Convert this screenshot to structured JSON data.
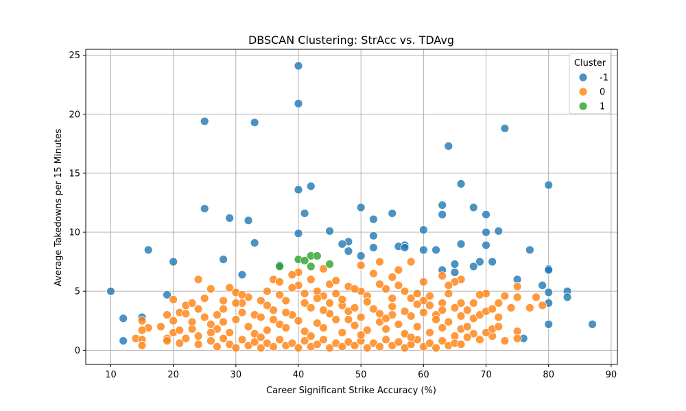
{
  "chart_data": {
    "type": "scatter",
    "title": "DBSCAN Clustering: StrAcc vs. TDAvg",
    "xlabel": "Career Significant Strike Accuracy (%)",
    "ylabel": "Average Takedowns per 15 Minutes",
    "xlim": [
      6,
      91
    ],
    "ylim": [
      -1.2,
      25.5
    ],
    "xticks": [
      10,
      20,
      30,
      40,
      50,
      60,
      70,
      80,
      90
    ],
    "yticks": [
      0,
      5,
      10,
      15,
      20,
      25
    ],
    "grid": true,
    "legend": {
      "title": "Cluster",
      "placement": "top-right"
    },
    "series": [
      {
        "name": "-1",
        "color": "#1f77b4",
        "points": [
          [
            40,
            24.1
          ],
          [
            40,
            20.9
          ],
          [
            25,
            19.4
          ],
          [
            33,
            19.3
          ],
          [
            73,
            18.8
          ],
          [
            64,
            17.3
          ],
          [
            66,
            14.1
          ],
          [
            80,
            14.0
          ],
          [
            40,
            13.6
          ],
          [
            42,
            13.9
          ],
          [
            63,
            12.3
          ],
          [
            68,
            12.1
          ],
          [
            50,
            12.1
          ],
          [
            25,
            12.0
          ],
          [
            41,
            11.6
          ],
          [
            55,
            11.6
          ],
          [
            63,
            11.5
          ],
          [
            70,
            11.5
          ],
          [
            29,
            11.2
          ],
          [
            52,
            11.1
          ],
          [
            32,
            11.0
          ],
          [
            70,
            10.0
          ],
          [
            72,
            10.1
          ],
          [
            60,
            10.2
          ],
          [
            45,
            10.1
          ],
          [
            40,
            9.9
          ],
          [
            52,
            9.7
          ],
          [
            48,
            9.2
          ],
          [
            33,
            9.1
          ],
          [
            47,
            9.0
          ],
          [
            66,
            9.0
          ],
          [
            70,
            8.9
          ],
          [
            57,
            8.9
          ],
          [
            56,
            8.8
          ],
          [
            57,
            8.7
          ],
          [
            52,
            8.7
          ],
          [
            60,
            8.5
          ],
          [
            62,
            8.5
          ],
          [
            16,
            8.5
          ],
          [
            77,
            8.5
          ],
          [
            48,
            8.4
          ],
          [
            50,
            8.0
          ],
          [
            28,
            7.7
          ],
          [
            20,
            7.5
          ],
          [
            69,
            7.5
          ],
          [
            71,
            7.5
          ],
          [
            37,
            7.2
          ],
          [
            65,
            7.3
          ],
          [
            68,
            7.1
          ],
          [
            80,
            6.9
          ],
          [
            80,
            6.8
          ],
          [
            65,
            6.6
          ],
          [
            31,
            6.4
          ],
          [
            75,
            6.0
          ],
          [
            79,
            5.5
          ],
          [
            10,
            5.0
          ],
          [
            83,
            5.0
          ],
          [
            80,
            4.9
          ],
          [
            19,
            4.7
          ],
          [
            83,
            4.5
          ],
          [
            80,
            4.0
          ],
          [
            15,
            2.8
          ],
          [
            12,
            2.7
          ],
          [
            80,
            2.2
          ],
          [
            87,
            2.2
          ],
          [
            76,
            1.0
          ],
          [
            12,
            0.8
          ],
          [
            63,
            6.8
          ]
        ]
      },
      {
        "name": "0",
        "color": "#ff7f0e",
        "points": [
          [
            24,
            6.0
          ],
          [
            40,
            6.6
          ],
          [
            39,
            6.4
          ],
          [
            36,
            6.0
          ],
          [
            42,
            6.0
          ],
          [
            53,
            7.5
          ],
          [
            58,
            7.5
          ],
          [
            50,
            7.2
          ],
          [
            56,
            6.8
          ],
          [
            63,
            6.3
          ],
          [
            66,
            6.0
          ],
          [
            60,
            5.8
          ],
          [
            65,
            5.8
          ],
          [
            70,
            4.8
          ],
          [
            72,
            4.0
          ],
          [
            75,
            5.4
          ],
          [
            75,
            4.5
          ],
          [
            73,
            4.6
          ],
          [
            78,
            4.5
          ],
          [
            79,
            3.8
          ],
          [
            77,
            3.6
          ],
          [
            74,
            3.6
          ],
          [
            72,
            2.8
          ],
          [
            75,
            1.6
          ],
          [
            75,
            1.0
          ],
          [
            73,
            0.8
          ],
          [
            71,
            1.2
          ],
          [
            70,
            1.5
          ],
          [
            20,
            4.3
          ],
          [
            22,
            3.8
          ],
          [
            23,
            4.0
          ],
          [
            19,
            3.0
          ],
          [
            21,
            3.2
          ],
          [
            22,
            3.1
          ],
          [
            20,
            2.5
          ],
          [
            18,
            2.0
          ],
          [
            16,
            1.9
          ],
          [
            15,
            2.5
          ],
          [
            15,
            1.7
          ],
          [
            14,
            1.0
          ],
          [
            15,
            0.9
          ],
          [
            15,
            0.4
          ],
          [
            19,
            1.0
          ],
          [
            19,
            0.8
          ],
          [
            20,
            1.5
          ],
          [
            21,
            1.7
          ],
          [
            21,
            0.6
          ],
          [
            22,
            1.0
          ],
          [
            23,
            1.8
          ],
          [
            24,
            1.2
          ],
          [
            26,
            5.2
          ],
          [
            25,
            4.4
          ],
          [
            27,
            3.0
          ],
          [
            28,
            3.5
          ],
          [
            26,
            2.2
          ],
          [
            29,
            5.3
          ],
          [
            30,
            4.9
          ],
          [
            31,
            4.0
          ],
          [
            33,
            3.0
          ],
          [
            34,
            4.2
          ],
          [
            35,
            5.0
          ],
          [
            37,
            4.7
          ],
          [
            38,
            4.2
          ],
          [
            40,
            5.5
          ],
          [
            41,
            4.0
          ],
          [
            43,
            5.0
          ],
          [
            44,
            4.6
          ],
          [
            45,
            5.6
          ],
          [
            46,
            4.8
          ],
          [
            47,
            3.8
          ],
          [
            48,
            5.4
          ],
          [
            50,
            5.0
          ],
          [
            51,
            4.6
          ],
          [
            52,
            6.5
          ],
          [
            54,
            5.2
          ],
          [
            55,
            4.4
          ],
          [
            56,
            5.5
          ],
          [
            57,
            5.0
          ],
          [
            58,
            4.4
          ],
          [
            59,
            4.8
          ],
          [
            60,
            4.2
          ],
          [
            61,
            3.8
          ],
          [
            62,
            3.0
          ],
          [
            63,
            4.0
          ],
          [
            64,
            4.8
          ],
          [
            65,
            3.6
          ],
          [
            66,
            2.9
          ],
          [
            67,
            3.4
          ],
          [
            68,
            2.7
          ],
          [
            69,
            3.0
          ],
          [
            70,
            3.3
          ],
          [
            71,
            1.8
          ],
          [
            72,
            2.0
          ],
          [
            25,
            2.8
          ],
          [
            27,
            1.8
          ],
          [
            28,
            2.4
          ],
          [
            29,
            1.5
          ],
          [
            30,
            2.6
          ],
          [
            31,
            3.2
          ],
          [
            32,
            2.0
          ],
          [
            33,
            1.4
          ],
          [
            34,
            2.8
          ],
          [
            35,
            1.7
          ],
          [
            36,
            3.4
          ],
          [
            37,
            2.2
          ],
          [
            38,
            1.9
          ],
          [
            39,
            3.0
          ],
          [
            40,
            2.5
          ],
          [
            41,
            1.6
          ],
          [
            42,
            3.6
          ],
          [
            43,
            2.3
          ],
          [
            44,
            1.9
          ],
          [
            45,
            3.1
          ],
          [
            46,
            2.6
          ],
          [
            47,
            1.5
          ],
          [
            48,
            3.3
          ],
          [
            49,
            2.1
          ],
          [
            50,
            2.8
          ],
          [
            51,
            1.7
          ],
          [
            52,
            3.5
          ],
          [
            53,
            2.4
          ],
          [
            54,
            1.8
          ],
          [
            55,
            3.0
          ],
          [
            56,
            2.2
          ],
          [
            57,
            1.4
          ],
          [
            58,
            2.9
          ],
          [
            59,
            2.0
          ],
          [
            60,
            3.2
          ],
          [
            61,
            1.5
          ],
          [
            62,
            2.6
          ],
          [
            63,
            1.9
          ],
          [
            64,
            2.4
          ],
          [
            65,
            1.2
          ],
          [
            66,
            1.8
          ],
          [
            67,
            2.0
          ],
          [
            68,
            1.4
          ],
          [
            69,
            0.9
          ],
          [
            24,
            0.5
          ],
          [
            26,
            0.8
          ],
          [
            27,
            0.3
          ],
          [
            28,
            1.0
          ],
          [
            29,
            0.5
          ],
          [
            30,
            0.2
          ],
          [
            31,
            0.9
          ],
          [
            32,
            0.4
          ],
          [
            33,
            0.7
          ],
          [
            34,
            0.2
          ],
          [
            35,
            0.6
          ],
          [
            36,
            0.3
          ],
          [
            37,
            0.9
          ],
          [
            38,
            0.4
          ],
          [
            39,
            0.6
          ],
          [
            40,
            0.2
          ],
          [
            41,
            0.8
          ],
          [
            42,
            0.3
          ],
          [
            43,
            0.5
          ],
          [
            44,
            0.9
          ],
          [
            45,
            0.2
          ],
          [
            46,
            0.6
          ],
          [
            47,
            0.3
          ],
          [
            48,
            0.7
          ],
          [
            49,
            0.4
          ],
          [
            50,
            0.8
          ],
          [
            51,
            0.2
          ],
          [
            52,
            0.6
          ],
          [
            53,
            0.3
          ],
          [
            54,
            0.9
          ],
          [
            55,
            0.4
          ],
          [
            56,
            0.7
          ],
          [
            57,
            0.2
          ],
          [
            58,
            0.5
          ],
          [
            59,
            0.9
          ],
          [
            60,
            0.3
          ],
          [
            61,
            0.6
          ],
          [
            62,
            0.2
          ],
          [
            63,
            0.8
          ],
          [
            64,
            0.4
          ],
          [
            65,
            0.6
          ],
          [
            66,
            0.5
          ],
          [
            30,
            4.0
          ],
          [
            32,
            4.5
          ],
          [
            35,
            3.8
          ],
          [
            38,
            3.2
          ],
          [
            41,
            4.8
          ],
          [
            44,
            3.4
          ],
          [
            47,
            4.3
          ],
          [
            49,
            3.6
          ],
          [
            51,
            4.1
          ],
          [
            53,
            3.1
          ],
          [
            55,
            3.7
          ],
          [
            57,
            3.3
          ],
          [
            59,
            3.9
          ],
          [
            61,
            4.6
          ],
          [
            63,
            3.4
          ],
          [
            45,
            4.0
          ],
          [
            36,
            2.6
          ],
          [
            48,
            2.6
          ],
          [
            54,
            2.7
          ],
          [
            42,
            1.2
          ],
          [
            50,
            1.3
          ],
          [
            58,
            1.1
          ],
          [
            34,
            1.1
          ],
          [
            26,
            1.5
          ],
          [
            44,
            6.9
          ],
          [
            46,
            5.9
          ],
          [
            49,
            5.2
          ],
          [
            53,
            5.6
          ],
          [
            55,
            6.2
          ],
          [
            39,
            5.3
          ],
          [
            37,
            5.8
          ],
          [
            43,
            4.4
          ],
          [
            31,
            4.7
          ],
          [
            28,
            4.2
          ],
          [
            24,
            3.5
          ],
          [
            23,
            2.4
          ],
          [
            66,
            4.0
          ],
          [
            68,
            4.0
          ],
          [
            69,
            4.7
          ],
          [
            67,
            1.1
          ],
          [
            71,
            3.5
          ],
          [
            64,
            5.5
          ]
        ]
      },
      {
        "name": "1",
        "color": "#2ca02c",
        "points": [
          [
            42,
            8.0
          ],
          [
            43,
            8.0
          ],
          [
            40,
            7.7
          ],
          [
            41,
            7.6
          ],
          [
            45,
            7.3
          ],
          [
            42,
            7.1
          ],
          [
            37,
            7.1
          ]
        ]
      }
    ]
  }
}
